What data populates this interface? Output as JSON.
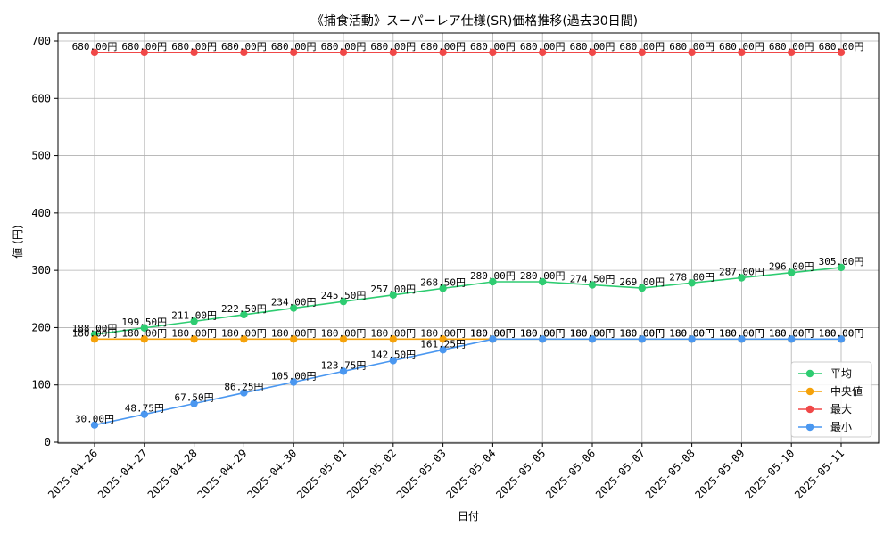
{
  "chart_data": {
    "type": "line",
    "title": "《捕食活動》スーパーレア仕様(SR)価格推移(過去30日間)",
    "xlabel": "日付",
    "ylabel": "値 (円)",
    "ylim": [
      0,
      700
    ],
    "yticks": [
      0,
      100,
      200,
      300,
      400,
      500,
      600,
      700
    ],
    "grid": true,
    "legend_position": "lower-right",
    "categories": [
      "2025-04-26",
      "2025-04-27",
      "2025-04-28",
      "2025-04-29",
      "2025-04-30",
      "2025-05-01",
      "2025-05-02",
      "2025-05-03",
      "2025-05-04",
      "2025-05-05",
      "2025-05-06",
      "2025-05-07",
      "2025-05-08",
      "2025-05-09",
      "2025-05-10",
      "2025-05-11"
    ],
    "series": [
      {
        "name": "平均",
        "color": "#2ecc71",
        "values": [
          188.0,
          199.5,
          211.0,
          222.5,
          234.0,
          245.5,
          257.0,
          268.5,
          280.0,
          280.0,
          274.5,
          269.0,
          278.0,
          287.0,
          296.0,
          305.0
        ],
        "labels": [
          "188.00円",
          "199.50円",
          "211.00円",
          "222.50円",
          "234.00円",
          "245.50円",
          "257.00円",
          "268.50円",
          "280.00円",
          "280.00円",
          "274.50円",
          "269.00円",
          "278.00円",
          "287.00円",
          "296.00円",
          "305.00円"
        ]
      },
      {
        "name": "中央値",
        "color": "#f5a20a",
        "values": [
          180,
          180,
          180,
          180,
          180,
          180,
          180,
          180,
          180,
          180,
          180,
          180,
          180,
          180,
          180,
          180
        ],
        "labels": [
          "180.00円",
          "180.00円",
          "180.00円",
          "180.00円",
          "180.00円",
          "180.00円",
          "180.00円",
          "180.00円",
          "180.00円",
          "180.00円",
          "180.00円",
          "180.00円",
          "180.00円",
          "180.00円",
          "180.00円",
          "180.00円"
        ]
      },
      {
        "name": "最大",
        "color": "#f04848",
        "values": [
          680,
          680,
          680,
          680,
          680,
          680,
          680,
          680,
          680,
          680,
          680,
          680,
          680,
          680,
          680,
          680
        ],
        "labels": [
          "680.00円",
          "680.00円",
          "680.00円",
          "680.00円",
          "680.00円",
          "680.00円",
          "680.00円",
          "680.00円",
          "680.00円",
          "680.00円",
          "680.00円",
          "680.00円",
          "680.00円",
          "680.00円",
          "680.00円",
          "680.00円"
        ]
      },
      {
        "name": "最小",
        "color": "#4a97f0",
        "values": [
          30.0,
          48.75,
          67.5,
          86.25,
          105.0,
          123.75,
          142.5,
          161.25,
          180,
          180,
          180,
          180,
          180,
          180,
          180,
          180
        ],
        "labels": [
          "30.00円",
          "48.75円",
          "67.50円",
          "86.25円",
          "105.00円",
          "123.75円",
          "142.50円",
          "161.25円",
          "180.00円",
          "180.00円",
          "180.00円",
          "180.00円",
          "180.00円",
          "180.00円",
          "180.00円",
          "180.00円"
        ]
      }
    ]
  }
}
